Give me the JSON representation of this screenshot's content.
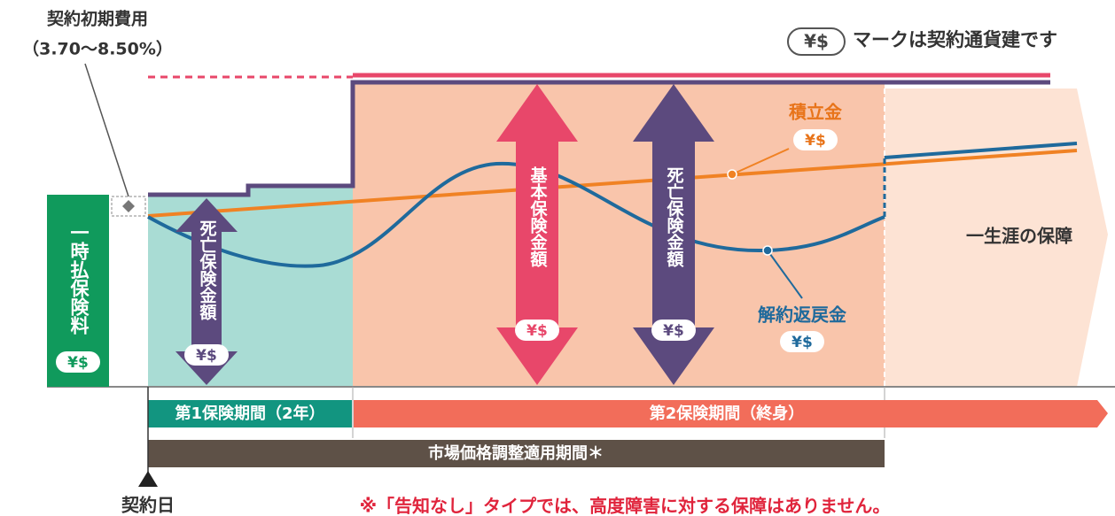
{
  "initial_cost": {
    "label": "契約初期費用",
    "range": "（3.70〜8.50%）"
  },
  "legend": {
    "mark": "¥$",
    "text": "マークは契約通貨建です"
  },
  "premium": "一時払保険料",
  "death_benefit_period1": "死亡保険金額",
  "basic_sum": "基本保険金額",
  "death_benefit_period2": "死亡保険金額",
  "reserve": "積立金",
  "surrender_value": "解約返戻金",
  "lifetime": "一生涯の保障",
  "period1": "第1保険期間（2年）",
  "period2": "第2保険期間（終身）",
  "mva_period": "市場価格調整適用期間＊",
  "contract_date": "契約日",
  "note": "※「告知なし」タイプでは、高度障害に対する保障はありません。"
}
